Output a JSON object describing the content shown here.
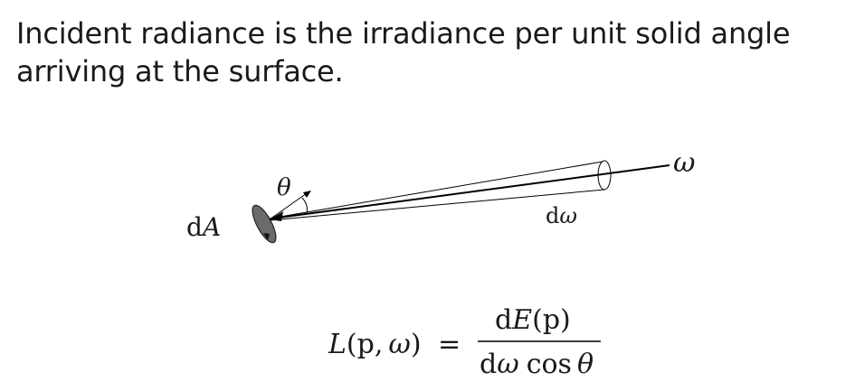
{
  "heading": {
    "line1": "Incident radiance is the irradiance per unit solid angle",
    "line2": "arriving at the surface."
  },
  "diagram": {
    "label_dA_d": "d",
    "label_dA_A": "A",
    "label_theta": "θ",
    "label_omega": "ω",
    "label_domega_d": "d",
    "label_domega_w": "ω"
  },
  "equation": {
    "lhs_L": "L",
    "lhs_open": "(",
    "lhs_p": "p",
    "lhs_comma": ",",
    "lhs_w": "ω",
    "lhs_close": ")",
    "equals": "=",
    "num_d": "d",
    "num_E": "E",
    "num_args": "(p)",
    "den_d": "d",
    "den_w": "ω",
    "den_cos": "cos",
    "den_theta": "θ"
  },
  "colors": {
    "text": "#1a1a1a",
    "surface_fill": "#6b6b6b",
    "line": "#000000"
  }
}
